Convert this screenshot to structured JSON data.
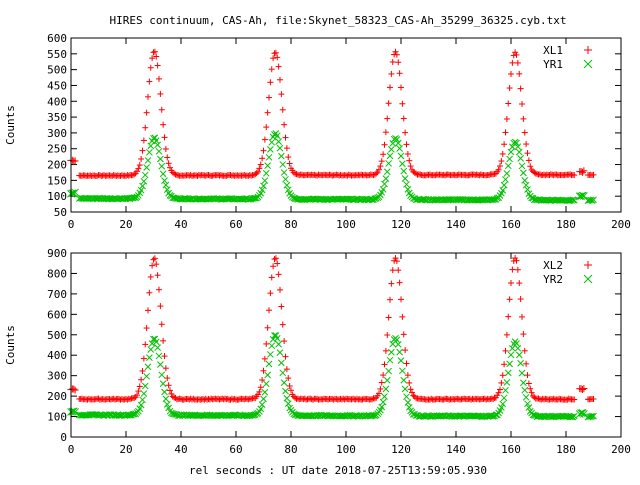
{
  "chart_data": [
    {
      "type": "scatter",
      "title": "HIRES continuum, CAS-Ah, file:Skynet_58323_CAS-Ah_35299_36325.cyb.txt",
      "xlabel": "",
      "ylabel": "Counts",
      "xlim": [
        0,
        200
      ],
      "ylim": [
        50,
        600
      ],
      "xticks": [
        "0",
        "20",
        "40",
        "60",
        "80",
        "100",
        "120",
        "140",
        "160",
        "180",
        "200"
      ],
      "yticks": [
        "50",
        "100",
        "150",
        "200",
        "250",
        "300",
        "350",
        "400",
        "450",
        "500",
        "550",
        "600"
      ],
      "legend_position": "top-right",
      "grid": false,
      "peaks_x": [
        30.3,
        74.3,
        118.0,
        161.5
      ],
      "series": [
        {
          "name": "XL1",
          "marker": "plus",
          "color": "#ff0000",
          "baseline_start": 165,
          "baseline_end": 168,
          "peak_heights": [
            558,
            556,
            557,
            555
          ],
          "cal_start": 213,
          "cal_end": 178
        },
        {
          "name": "YR1",
          "marker": "cross",
          "color": "#00c000",
          "baseline_start": 93,
          "baseline_end": 87,
          "peak_heights": [
            285,
            298,
            284,
            272
          ],
          "cal_start": 110,
          "cal_end": 100
        }
      ]
    },
    {
      "type": "scatter",
      "title": "",
      "xlabel": "rel seconds : UT date 2018-07-25T13:59:05.930",
      "ylabel": "Counts",
      "xlim": [
        0,
        200
      ],
      "ylim": [
        0,
        900
      ],
      "xticks": [
        "0",
        "20",
        "40",
        "60",
        "80",
        "100",
        "120",
        "140",
        "160",
        "180",
        "200"
      ],
      "yticks": [
        "0",
        "100",
        "200",
        "300",
        "400",
        "500",
        "600",
        "700",
        "800",
        "900"
      ],
      "legend_position": "top-right",
      "grid": false,
      "peaks_x": [
        30.3,
        74.3,
        118.0,
        161.5
      ],
      "series": [
        {
          "name": "XL2",
          "marker": "plus",
          "color": "#ff0000",
          "baseline_start": 185,
          "baseline_end": 185,
          "peak_heights": [
            875,
            875,
            875,
            875
          ],
          "cal_start": 232,
          "cal_end": 235
        },
        {
          "name": "YR2",
          "marker": "cross",
          "color": "#00c000",
          "baseline_start": 108,
          "baseline_end": 100,
          "peak_heights": [
            480,
            500,
            485,
            465
          ],
          "cal_start": 125,
          "cal_end": 115
        }
      ]
    }
  ]
}
